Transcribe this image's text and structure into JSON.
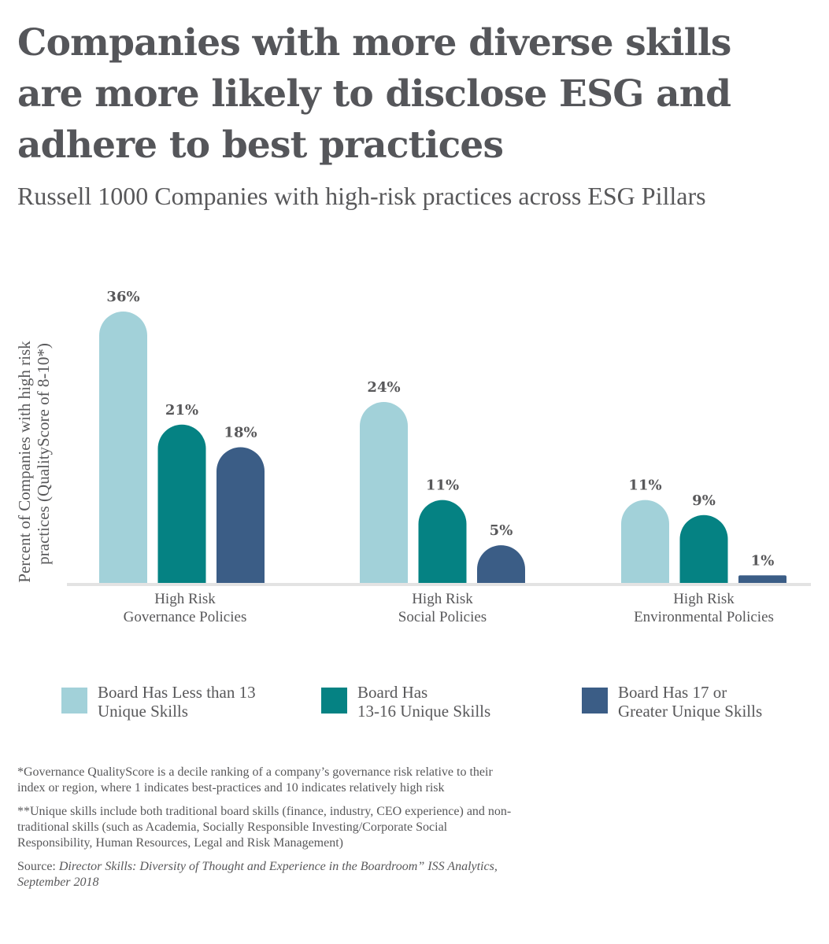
{
  "title": "Companies with more diverse skills are more likely to disclose ESG and adhere to best practices",
  "subtitle": "Russell 1000 Companies with high-risk practices across ESG Pillars",
  "colors": {
    "light": "#a2d1d9",
    "teal": "#058283",
    "navy": "#3b5d86",
    "axis": "#e3e3e3",
    "text": "#58585a"
  },
  "chart_data": {
    "type": "bar",
    "ylabel_lines": [
      "Percent of Companies with high risk",
      "practices (QualityScore of 8-10*)"
    ],
    "categories": [
      [
        "High Risk",
        "Governance Policies"
      ],
      [
        "High Risk",
        "Social Policies"
      ],
      [
        "High Risk",
        "Environmental Policies"
      ]
    ],
    "ylim": [
      0,
      36
    ],
    "grid": false,
    "legend_position": "bottom",
    "series": [
      {
        "name": "Board Has Less than 13 Unique Skills",
        "color": "#a2d1d9",
        "values": [
          36,
          24,
          11
        ],
        "labels": [
          "36%",
          "24%",
          "11%"
        ]
      },
      {
        "name": "Board Has 13-16 Unique Skills",
        "color": "#058283",
        "values": [
          21,
          11,
          9
        ],
        "labels": [
          "21%",
          "11%",
          "9%"
        ]
      },
      {
        "name": "Board Has 17 or Greater Unique Skills",
        "color": "#3b5d86",
        "values": [
          18,
          5,
          1
        ],
        "labels": [
          "18%",
          "5%",
          "1%"
        ]
      }
    ]
  },
  "legend": [
    {
      "line1": "Board Has Less than 13",
      "line2": "Unique Skills",
      "color": "#a2d1d9"
    },
    {
      "line1": "Board Has",
      "line2": "13-16 Unique Skills",
      "color": "#058283"
    },
    {
      "line1": "Board Has 17 or",
      "line2": "Greater Unique Skills",
      "color": "#3b5d86"
    }
  ],
  "notes": {
    "note1": "*Governance QualityScore is a decile ranking of a company’s governance risk relative to their index or region, where 1 indicates best-practices and 10 indicates relatively high risk",
    "note2": "**Unique skills include both traditional board skills (finance, industry, CEO experience) and non-traditional skills (such as Academia, Socially Responsible Investing/Corporate Social Responsibility, Human Resources, Legal and Risk Management)",
    "source_prefix": "Source: ",
    "source_italic": "Director Skills: Diversity of Thought and Experience in the Boardroom” ISS Analytics, September 2018"
  }
}
